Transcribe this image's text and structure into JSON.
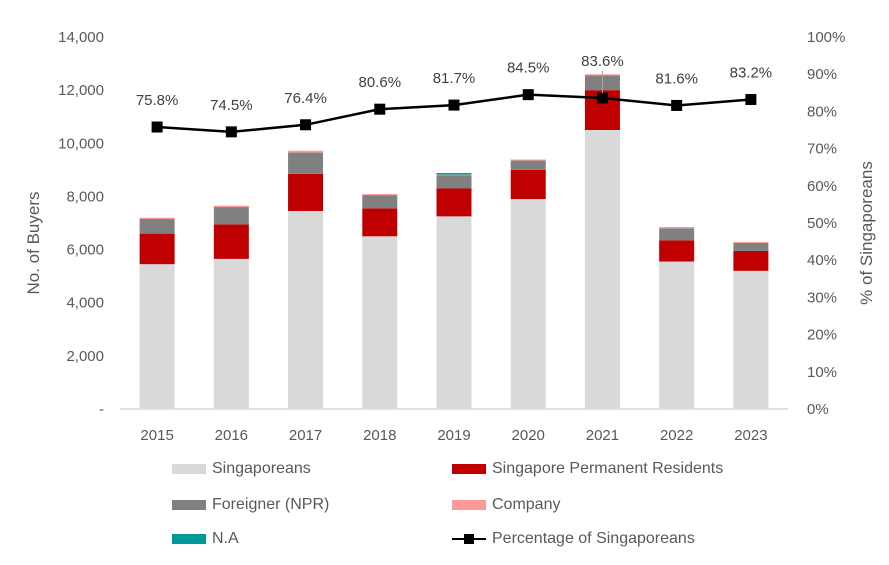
{
  "chart_data": {
    "type": "bar",
    "stacked": true,
    "title": "",
    "xlabel": "",
    "ylabel": "No. of Buyers",
    "y2label": "% of Singaporeans",
    "ylim": [
      0,
      14000
    ],
    "y2lim": [
      0,
      1.0
    ],
    "yticks": [
      "-",
      "2,000",
      "4,000",
      "6,000",
      "8,000",
      "10,000",
      "12,000",
      "14,000"
    ],
    "y2ticks": [
      "0%",
      "10%",
      "20%",
      "30%",
      "40%",
      "50%",
      "60%",
      "70%",
      "80%",
      "90%",
      "100%"
    ],
    "grid": false,
    "legend_position": "bottom",
    "categories": [
      "2015",
      "2016",
      "2017",
      "2018",
      "2019",
      "2020",
      "2021",
      "2022",
      "2023"
    ],
    "series": [
      {
        "name": "Singaporeans",
        "color": "#d9d9d9",
        "values": [
          5450,
          5650,
          7450,
          6500,
          7250,
          7900,
          10500,
          5550,
          5200
        ]
      },
      {
        "name": "Singapore Permanent Residents",
        "color": "#c00000",
        "values": [
          1150,
          1300,
          1400,
          1050,
          1050,
          1100,
          1500,
          800,
          750
        ]
      },
      {
        "name": "Foreigner (NPR)",
        "color": "#808080",
        "values": [
          550,
          650,
          800,
          500,
          500,
          350,
          550,
          450,
          300
        ]
      },
      {
        "name": "Company",
        "color": "#ff9999",
        "values": [
          50,
          50,
          70,
          40,
          20,
          40,
          50,
          50,
          40
        ]
      },
      {
        "name": "N.A",
        "color": "#009999",
        "values": [
          0,
          0,
          0,
          0,
          60,
          0,
          0,
          0,
          0
        ]
      }
    ],
    "line_series": {
      "name": "Percentage of Singaporeans",
      "axis": "secondary",
      "color": "#000000",
      "values": [
        0.758,
        0.745,
        0.764,
        0.806,
        0.817,
        0.845,
        0.836,
        0.816,
        0.832
      ],
      "labels": [
        "75.8%",
        "74.5%",
        "76.4%",
        "80.6%",
        "81.7%",
        "84.5%",
        "83.6%",
        "81.6%",
        "83.2%"
      ]
    }
  },
  "legend": {
    "items": [
      {
        "label": "Singaporeans",
        "color": "#d9d9d9",
        "kind": "bar"
      },
      {
        "label": "Singapore Permanent Residents",
        "color": "#c00000",
        "kind": "bar"
      },
      {
        "label": "Foreigner (NPR)",
        "color": "#808080",
        "kind": "bar"
      },
      {
        "label": "Company",
        "color": "#ff9999",
        "kind": "bar"
      },
      {
        "label": "N.A",
        "color": "#009999",
        "kind": "bar"
      },
      {
        "label": "Percentage of Singaporeans",
        "color": "#000000",
        "kind": "line"
      }
    ]
  }
}
